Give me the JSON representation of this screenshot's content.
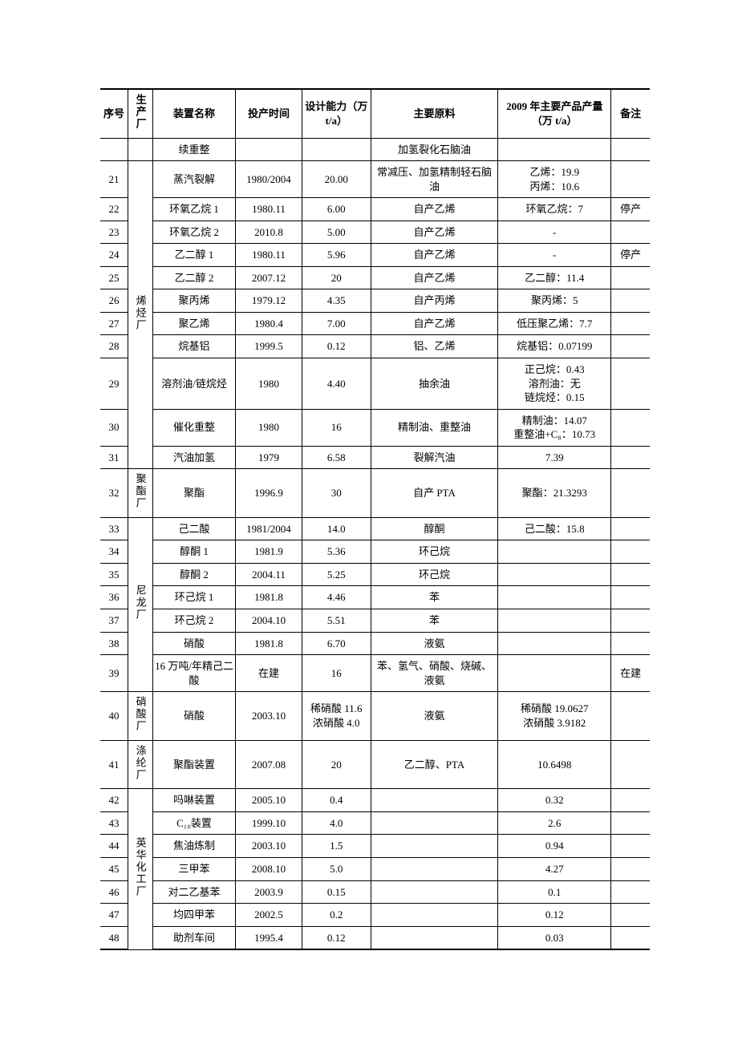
{
  "table": {
    "font_family": "SimSun",
    "font_size_pt": 10,
    "border_color": "#000000",
    "background": "#ffffff",
    "columns": [
      {
        "key": "seq",
        "label": "序号"
      },
      {
        "key": "factory",
        "label": "生产厂"
      },
      {
        "key": "unit",
        "label": "装置名称"
      },
      {
        "key": "startup",
        "label": "投产时间"
      },
      {
        "key": "capacity",
        "label": "设计能力（万 t/a）"
      },
      {
        "key": "feed",
        "label": "主要原料"
      },
      {
        "key": "output",
        "label": "2009 年主要产品产量（万 t/a）"
      },
      {
        "key": "remark",
        "label": "备注"
      }
    ],
    "groups": [
      {
        "factory": "",
        "rows": [
          {
            "seq": "",
            "unit": "续重整",
            "startup": "",
            "capacity": "",
            "feed": "加氢裂化石脑油",
            "output": "",
            "remark": ""
          }
        ]
      },
      {
        "factory": "烯烃厂",
        "rows": [
          {
            "seq": "21",
            "unit": "蒸汽裂解",
            "startup": "1980/2004",
            "capacity": "20.00",
            "feed": "常减压、加氢精制轻石脑油",
            "output": "乙烯：19.9\n丙烯：10.6",
            "remark": ""
          },
          {
            "seq": "22",
            "unit": "环氧乙烷 1",
            "startup": "1980.11",
            "capacity": "6.00",
            "feed": "自产乙烯",
            "output": "环氧乙烷：7",
            "remark": "停产"
          },
          {
            "seq": "23",
            "unit": "环氧乙烷 2",
            "startup": "2010.8",
            "capacity": "5.00",
            "feed": "自产乙烯",
            "output": "-",
            "remark": ""
          },
          {
            "seq": "24",
            "unit": "乙二醇 1",
            "startup": "1980.11",
            "capacity": "5.96",
            "feed": "自产乙烯",
            "output": "-",
            "remark": "停产"
          },
          {
            "seq": "25",
            "unit": "乙二醇 2",
            "startup": "2007.12",
            "capacity": "20",
            "feed": "自产乙烯",
            "output": "乙二醇：11.4",
            "remark": ""
          },
          {
            "seq": "26",
            "unit": "聚丙烯",
            "startup": "1979.12",
            "capacity": "4.35",
            "feed": "自产丙烯",
            "output": "聚丙烯：5",
            "remark": ""
          },
          {
            "seq": "27",
            "unit": "聚乙烯",
            "startup": "1980.4",
            "capacity": "7.00",
            "feed": "自产乙烯",
            "output": "低压聚乙烯：7.7",
            "remark": ""
          },
          {
            "seq": "28",
            "unit": "烷基铝",
            "startup": "1999.5",
            "capacity": "0.12",
            "feed": "铝、乙烯",
            "output": "烷基铝：0.07199",
            "remark": ""
          },
          {
            "seq": "29",
            "unit": "溶剂油/链烷烃",
            "startup": "1980",
            "capacity": "4.40",
            "feed": "抽余油",
            "output": "正己烷：0.43\n溶剂油：无\n链烷烃：0.15",
            "remark": ""
          },
          {
            "seq": "30",
            "unit": "催化重整",
            "startup": "1980",
            "capacity": "16",
            "feed": "精制油、重整油",
            "output": "精制油：14.07\n重整油+C₈：10.73",
            "remark": ""
          },
          {
            "seq": "31",
            "unit": "汽油加氢",
            "startup": "1979",
            "capacity": "6.58",
            "feed": "裂解汽油",
            "output": "7.39",
            "remark": ""
          }
        ]
      },
      {
        "factory": "聚酯厂",
        "rows": [
          {
            "seq": "32",
            "unit": "聚酯",
            "startup": "1996.9",
            "capacity": "30",
            "feed": "自产 PTA",
            "output": "聚酯：21.3293",
            "remark": ""
          }
        ]
      },
      {
        "factory": "尼龙厂",
        "rows": [
          {
            "seq": "33",
            "unit": "己二酸",
            "startup": "1981/2004",
            "capacity": "14.0",
            "feed": "醇酮",
            "output": "己二酸：15.8",
            "remark": ""
          },
          {
            "seq": "34",
            "unit": "醇酮 1",
            "startup": "1981.9",
            "capacity": "5.36",
            "feed": "环己烷",
            "output": "",
            "remark": ""
          },
          {
            "seq": "35",
            "unit": "醇酮 2",
            "startup": "2004.11",
            "capacity": "5.25",
            "feed": "环己烷",
            "output": "",
            "remark": ""
          },
          {
            "seq": "36",
            "unit": "环己烷 1",
            "startup": "1981.8",
            "capacity": "4.46",
            "feed": "苯",
            "output": "",
            "remark": ""
          },
          {
            "seq": "37",
            "unit": "环己烷 2",
            "startup": "2004.10",
            "capacity": "5.51",
            "feed": "苯",
            "output": "",
            "remark": ""
          },
          {
            "seq": "38",
            "unit": "硝酸",
            "startup": "1981.8",
            "capacity": "6.70",
            "feed": "液氨",
            "output": "",
            "remark": ""
          },
          {
            "seq": "39",
            "unit": "16 万吨/年精己二酸",
            "startup": "在建",
            "capacity": "16",
            "feed": "苯、氢气、硝酸、烧碱、液氨",
            "output": "",
            "remark": "在建"
          }
        ]
      },
      {
        "factory": "硝酸厂",
        "rows": [
          {
            "seq": "40",
            "unit": "硝酸",
            "startup": "2003.10",
            "capacity": "稀硝酸 11.6\n浓硝酸 4.0",
            "feed": "液氨",
            "output": "稀硝酸 19.0627\n浓硝酸 3.9182",
            "remark": ""
          }
        ]
      },
      {
        "factory": "涤纶厂",
        "rows": [
          {
            "seq": "41",
            "unit": "聚酯装置",
            "startup": "2007.08",
            "capacity": "20",
            "feed": "乙二醇、PTA",
            "output": "10.6498",
            "remark": ""
          }
        ]
      },
      {
        "factory": "英华化工厂",
        "rows": [
          {
            "seq": "42",
            "unit": "吗啉装置",
            "startup": "2005.10",
            "capacity": "0.4",
            "feed": "",
            "output": "0.32",
            "remark": ""
          },
          {
            "seq": "43",
            "unit": "C₁₀装置",
            "startup": "1999.10",
            "capacity": "4.0",
            "feed": "",
            "output": "2.6",
            "remark": ""
          },
          {
            "seq": "44",
            "unit": "焦油炼制",
            "startup": "2003.10",
            "capacity": "1.5",
            "feed": "",
            "output": "0.94",
            "remark": ""
          },
          {
            "seq": "45",
            "unit": "三甲苯",
            "startup": "2008.10",
            "capacity": "5.0",
            "feed": "",
            "output": "4.27",
            "remark": ""
          },
          {
            "seq": "46",
            "unit": "对二乙基苯",
            "startup": "2003.9",
            "capacity": "0.15",
            "feed": "",
            "output": "0.1",
            "remark": ""
          },
          {
            "seq": "47",
            "unit": "均四甲苯",
            "startup": "2002.5",
            "capacity": "0.2",
            "feed": "",
            "output": "0.12",
            "remark": ""
          },
          {
            "seq": "48",
            "unit": "助剂车间",
            "startup": "1995.4",
            "capacity": "0.12",
            "feed": "",
            "output": "0.03",
            "remark": ""
          }
        ]
      }
    ]
  }
}
